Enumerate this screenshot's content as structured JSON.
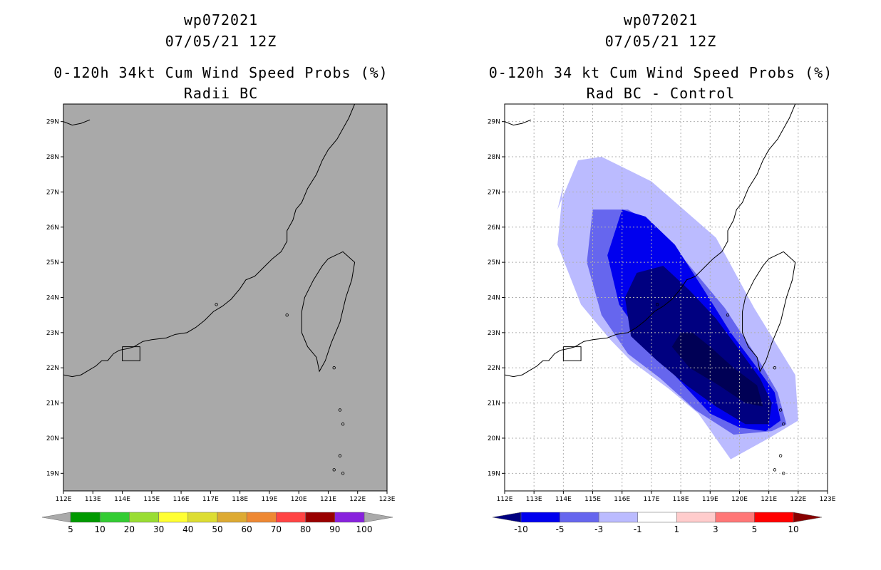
{
  "colors": {
    "land_gray": "#a9a9a9",
    "grid": "#b0b0b0",
    "prob_colors": [
      "#009900",
      "#33cc33",
      "#99dd33",
      "#ffff33",
      "#dddd33",
      "#ddaa33",
      "#ee8833",
      "#ff4444",
      "#990000",
      "#8822dd"
    ],
    "diff_colors": [
      "#000080",
      "#0000ee",
      "#6666ee",
      "#bbbbff",
      "#ffffff",
      "#ffcccc",
      "#ff7777",
      "#ff0000",
      "#880000"
    ]
  },
  "chart_data": [
    {
      "type": "heatmap",
      "storm": "wp072021",
      "date": "07/05/21 12Z",
      "title": "0-120h 34kt Cum Wind Speed Probs (%)",
      "subtitle": "Radii BC",
      "xlim": [
        112,
        123
      ],
      "ylim": [
        18.5,
        29.5
      ],
      "xticks": [
        "112E",
        "113E",
        "114E",
        "115E",
        "116E",
        "117E",
        "118E",
        "119E",
        "120E",
        "121E",
        "122E",
        "123E"
      ],
      "yticks": [
        "19N",
        "20N",
        "21N",
        "22N",
        "23N",
        "24N",
        "25N",
        "26N",
        "27N",
        "28N",
        "29N"
      ],
      "field": "no probability contours shown (gray background)",
      "colorbar_labels": [
        "5",
        "10",
        "20",
        "30",
        "40",
        "50",
        "60",
        "70",
        "80",
        "90",
        "100"
      ]
    },
    {
      "type": "heatmap",
      "storm": "wp072021",
      "date": "07/05/21 12Z",
      "title": "0-120h 34 kt Cum Wind Speed Probs (%)",
      "subtitle": "Rad BC - Control",
      "xlim": [
        112,
        123
      ],
      "ylim": [
        18.5,
        29.5
      ],
      "xticks": [
        "112E",
        "113E",
        "114E",
        "115E",
        "116E",
        "117E",
        "118E",
        "119E",
        "120E",
        "121E",
        "122E",
        "123E"
      ],
      "yticks": [
        "19N",
        "20N",
        "21N",
        "22N",
        "23N",
        "24N",
        "25N",
        "26N",
        "27N",
        "28N",
        "29N"
      ],
      "colorbar_labels": [
        "-10",
        "-5",
        "-3",
        "-1",
        "1",
        "3",
        "5",
        "10"
      ],
      "contours": [
        {
          "level": "-1 to 1 (≤ -1 band)",
          "lon": [
            114.0,
            113.8,
            114.6,
            115.6,
            116.3,
            117.6,
            118.6,
            119.7,
            121.0,
            122.0,
            121.9,
            120.5,
            119.2,
            117.0,
            115.3,
            114.5,
            113.8,
            114.0
          ],
          "lat": [
            27.2,
            25.5,
            23.8,
            22.8,
            22.2,
            21.4,
            20.7,
            19.4,
            20.0,
            20.5,
            21.8,
            23.7,
            25.7,
            27.3,
            28.0,
            27.9,
            26.5,
            27.2
          ]
        },
        {
          "level": "-3 to -1",
          "lon": [
            115.0,
            114.8,
            115.3,
            116.2,
            117.3,
            118.5,
            119.8,
            121.1,
            121.6,
            121.3,
            120.6,
            119.5,
            118.0,
            117.0,
            116.2,
            115.0
          ],
          "lat": [
            26.5,
            25.0,
            23.5,
            22.4,
            21.7,
            20.8,
            20.1,
            20.2,
            20.4,
            21.3,
            22.3,
            23.7,
            25.2,
            26.1,
            26.5,
            26.5
          ]
        },
        {
          "level": "-5 to -3",
          "lon": [
            116.0,
            115.5,
            115.9,
            117.0,
            118.0,
            119.0,
            120.0,
            120.9,
            121.4,
            121.2,
            120.6,
            119.7,
            118.8,
            117.8,
            116.8,
            116.0
          ],
          "lat": [
            26.5,
            25.2,
            23.8,
            22.5,
            21.6,
            20.7,
            20.3,
            20.2,
            20.5,
            21.3,
            22.0,
            23.0,
            24.2,
            25.5,
            26.3,
            26.5
          ]
        },
        {
          "level": "-10 to -5",
          "lon": [
            116.5,
            116.1,
            116.3,
            117.2,
            118.2,
            119.2,
            120.2,
            121.0,
            121.1,
            120.7,
            120.0,
            119.2,
            118.3,
            117.4,
            116.5
          ],
          "lat": [
            24.7,
            24.0,
            22.9,
            22.2,
            21.5,
            20.9,
            20.4,
            20.4,
            21.0,
            21.7,
            22.5,
            23.4,
            24.2,
            24.9,
            24.7
          ]
        },
        {
          "level": "< -10",
          "lon": [
            118.0,
            117.7,
            118.3,
            119.3,
            120.2,
            120.8,
            120.6,
            119.8,
            119.0,
            118.4,
            118.0
          ],
          "lat": [
            23.0,
            22.6,
            22.0,
            21.5,
            21.0,
            20.9,
            21.5,
            22.0,
            22.6,
            23.0,
            23.0
          ]
        }
      ]
    }
  ],
  "left": {
    "line1": "wp072021",
    "line2": "07/05/21 12Z",
    "line3": "0-120h 34kt Cum Wind Speed Probs (%)",
    "line4": "Radii BC"
  },
  "right": {
    "line1": "wp072021",
    "line2": "07/05/21 12Z",
    "line3": "0-120h 34 kt Cum Wind Speed Probs (%)",
    "line4": "Rad BC - Control"
  }
}
